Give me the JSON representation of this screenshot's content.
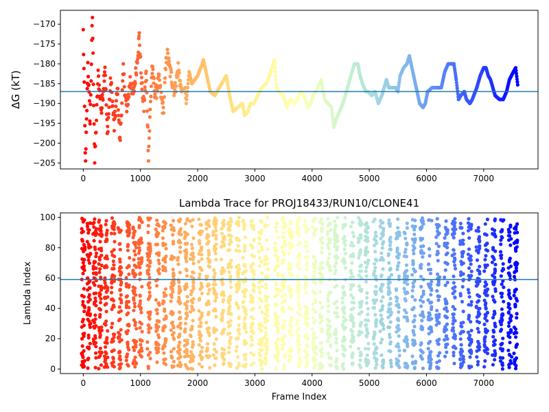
{
  "chart_data": [
    {
      "type": "scatter",
      "title": "",
      "xlabel": "",
      "ylabel": "ΔG (kT)",
      "xlim": [
        -400,
        7950
      ],
      "ylim": [
        -206.5,
        -166.5
      ],
      "xticks": [
        0,
        1000,
        2000,
        3000,
        4000,
        5000,
        6000,
        7000
      ],
      "xtick_labels": [
        "0",
        "1000",
        "2000",
        "3000",
        "4000",
        "5000",
        "6000",
        "7000"
      ],
      "yticks": [
        -205,
        -200,
        -195,
        -190,
        -185,
        -180,
        -175,
        -170
      ],
      "ytick_labels": [
        "−205",
        "−200",
        "−195",
        "−190",
        "−185",
        "−180",
        "−175",
        "−170"
      ],
      "hline": -187,
      "hline_color": "#1f77b4",
      "colormap": "rainbow (red at early frames → purple at late frames)",
      "x_max": 7600,
      "grid": false,
      "trace": [
        [
          0,
          -172
        ],
        [
          40,
          -206
        ],
        [
          80,
          -180
        ],
        [
          120,
          -195
        ],
        [
          160,
          -168
        ],
        [
          200,
          -205
        ],
        [
          260,
          -183
        ],
        [
          320,
          -192
        ],
        [
          380,
          -180
        ],
        [
          420,
          -198
        ],
        [
          480,
          -184
        ],
        [
          540,
          -196
        ],
        [
          600,
          -186
        ],
        [
          640,
          -200
        ],
        [
          700,
          -182
        ],
        [
          760,
          -192
        ],
        [
          820,
          -184
        ],
        [
          880,
          -188
        ],
        [
          940,
          -179
        ],
        [
          980,
          -173
        ],
        [
          1020,
          -185
        ],
        [
          1060,
          -191
        ],
        [
          1100,
          -182
        ],
        [
          1140,
          -203
        ],
        [
          1200,
          -181
        ],
        [
          1260,
          -188
        ],
        [
          1320,
          -184
        ],
        [
          1400,
          -192
        ],
        [
          1460,
          -177
        ],
        [
          1520,
          -182
        ],
        [
          1600,
          -187
        ],
        [
          1660,
          -181
        ],
        [
          1720,
          -187
        ],
        [
          1780,
          -186
        ],
        [
          1800,
          -190
        ],
        [
          1850,
          -182
        ],
        [
          1900,
          -185
        ],
        [
          2000,
          -183
        ],
        [
          2080,
          -180
        ],
        [
          2100,
          -179
        ],
        [
          2160,
          -183
        ],
        [
          2220,
          -187
        ],
        [
          2300,
          -188
        ],
        [
          2380,
          -186
        ],
        [
          2460,
          -184
        ],
        [
          2500,
          -183
        ],
        [
          2560,
          -188
        ],
        [
          2620,
          -192
        ],
        [
          2700,
          -191
        ],
        [
          2780,
          -190
        ],
        [
          2820,
          -193
        ],
        [
          2880,
          -192
        ],
        [
          2920,
          -190
        ],
        [
          2980,
          -190
        ],
        [
          3050,
          -188
        ],
        [
          3120,
          -186
        ],
        [
          3200,
          -185
        ],
        [
          3280,
          -182
        ],
        [
          3340,
          -179
        ],
        [
          3380,
          -186
        ],
        [
          3420,
          -187
        ],
        [
          3500,
          -188
        ],
        [
          3560,
          -191
        ],
        [
          3620,
          -189
        ],
        [
          3700,
          -190
        ],
        [
          3740,
          -189
        ],
        [
          3800,
          -187
        ],
        [
          3860,
          -188
        ],
        [
          3920,
          -191
        ],
        [
          3980,
          -190
        ],
        [
          4020,
          -188
        ],
        [
          4100,
          -186
        ],
        [
          4160,
          -184
        ],
        [
          4220,
          -189
        ],
        [
          4280,
          -190
        ],
        [
          4340,
          -191
        ],
        [
          4380,
          -196
        ],
        [
          4420,
          -194
        ],
        [
          4480,
          -192
        ],
        [
          4540,
          -190
        ],
        [
          4600,
          -187
        ],
        [
          4660,
          -184
        ],
        [
          4700,
          -182
        ],
        [
          4740,
          -180
        ],
        [
          4800,
          -180
        ],
        [
          4840,
          -183
        ],
        [
          4880,
          -185
        ],
        [
          4940,
          -187
        ],
        [
          4980,
          -187
        ],
        [
          5040,
          -188
        ],
        [
          5100,
          -187
        ],
        [
          5160,
          -190
        ],
        [
          5220,
          -188
        ],
        [
          5260,
          -186
        ],
        [
          5300,
          -184
        ],
        [
          5340,
          -186
        ],
        [
          5400,
          -186
        ],
        [
          5460,
          -186
        ],
        [
          5500,
          -187
        ],
        [
          5540,
          -183
        ],
        [
          5600,
          -181
        ],
        [
          5660,
          -180
        ],
        [
          5700,
          -178
        ],
        [
          5760,
          -182
        ],
        [
          5820,
          -186
        ],
        [
          5880,
          -190
        ],
        [
          5940,
          -191
        ],
        [
          5980,
          -190
        ],
        [
          6020,
          -187
        ],
        [
          6100,
          -186
        ],
        [
          6160,
          -186
        ],
        [
          6200,
          -186
        ],
        [
          6260,
          -186
        ],
        [
          6320,
          -182
        ],
        [
          6380,
          -180
        ],
        [
          6440,
          -180
        ],
        [
          6480,
          -180
        ],
        [
          6520,
          -184
        ],
        [
          6560,
          -189
        ],
        [
          6600,
          -188
        ],
        [
          6660,
          -187
        ],
        [
          6700,
          -189
        ],
        [
          6760,
          -190
        ],
        [
          6800,
          -189
        ],
        [
          6880,
          -186
        ],
        [
          6940,
          -183
        ],
        [
          7000,
          -181
        ],
        [
          7040,
          -181
        ],
        [
          7080,
          -183
        ],
        [
          7120,
          -184
        ],
        [
          7200,
          -188
        ],
        [
          7280,
          -189
        ],
        [
          7340,
          -189
        ],
        [
          7400,
          -187
        ],
        [
          7450,
          -184
        ],
        [
          7520,
          -182
        ],
        [
          7560,
          -181
        ],
        [
          7600,
          -186
        ]
      ]
    },
    {
      "type": "scatter",
      "title": "Lambda Trace for PROJ18433/RUN10/CLONE41",
      "xlabel": "Frame Index",
      "ylabel": "Lambda Index",
      "xlim": [
        -400,
        7950
      ],
      "ylim": [
        -3,
        103
      ],
      "xticks": [
        0,
        1000,
        2000,
        3000,
        4000,
        5000,
        6000,
        7000
      ],
      "xtick_labels": [
        "0",
        "1000",
        "2000",
        "3000",
        "4000",
        "5000",
        "6000",
        "7000"
      ],
      "yticks": [
        0,
        20,
        40,
        60,
        80,
        100
      ],
      "ytick_labels": [
        "0",
        "20",
        "40",
        "60",
        "80",
        "100"
      ],
      "hline": 59,
      "hline_color": "#1f77b4",
      "colormap": "rainbow (red at early frames → purple at late frames)",
      "x_max": 7600,
      "grid": false,
      "y_range_of_points": [
        0,
        100
      ],
      "dense_column_frames": [
        0,
        100,
        200,
        300,
        400,
        520,
        640,
        780,
        900,
        1000,
        1150,
        1300,
        1420,
        1560,
        1680,
        1800,
        1900,
        2050,
        2180,
        2300,
        2440,
        2560,
        2700,
        2820,
        2960,
        3100,
        3200,
        3380,
        3500,
        3620,
        3760,
        3900,
        4040,
        4160,
        4300,
        4420,
        4560,
        4700,
        4840,
        4960,
        5100,
        5220,
        5360,
        5500,
        5640,
        5780,
        5920,
        6060,
        6200,
        6340,
        6480,
        6620,
        6760,
        6900,
        7040,
        7180,
        7320,
        7460,
        7560
      ]
    }
  ]
}
